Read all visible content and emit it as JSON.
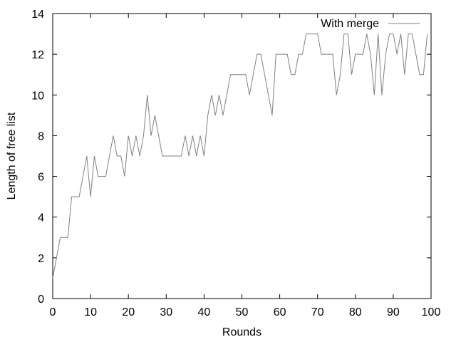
{
  "chart_data": {
    "type": "line",
    "xlabel": "Rounds",
    "ylabel": "Length of free list",
    "xlim": [
      0,
      100
    ],
    "ylim": [
      0,
      14
    ],
    "xticks": [
      0,
      10,
      20,
      30,
      40,
      50,
      60,
      70,
      80,
      90,
      100
    ],
    "yticks": [
      0,
      2,
      4,
      6,
      8,
      10,
      12,
      14
    ],
    "grid": false,
    "legend_position": "top-right",
    "series": [
      {
        "name": "With merge",
        "color": "#808080",
        "x": [
          0,
          1,
          2,
          3,
          4,
          5,
          6,
          7,
          8,
          9,
          10,
          11,
          12,
          13,
          14,
          15,
          16,
          17,
          18,
          19,
          20,
          21,
          22,
          23,
          24,
          25,
          26,
          27,
          28,
          29,
          30,
          31,
          32,
          33,
          34,
          35,
          36,
          37,
          38,
          39,
          40,
          41,
          42,
          43,
          44,
          45,
          46,
          47,
          48,
          49,
          50,
          51,
          52,
          53,
          54,
          55,
          56,
          57,
          58,
          59,
          60,
          61,
          62,
          63,
          64,
          65,
          66,
          67,
          68,
          69,
          70,
          71,
          72,
          73,
          74,
          75,
          76,
          77,
          78,
          79,
          80,
          81,
          82,
          83,
          84,
          85,
          86,
          87,
          88,
          89,
          90,
          91,
          92,
          93,
          94,
          95,
          96,
          97,
          98,
          99
        ],
        "values": [
          1,
          2,
          3,
          3,
          3,
          5,
          5,
          5,
          6,
          7,
          5,
          7,
          6,
          6,
          6,
          7,
          8,
          7,
          7,
          6,
          8,
          7,
          8,
          7,
          8,
          10,
          8,
          9,
          8,
          7,
          7,
          7,
          7,
          7,
          7,
          8,
          7,
          8,
          7,
          8,
          7,
          9,
          10,
          9,
          10,
          9,
          10,
          11,
          11,
          11,
          11,
          11,
          10,
          11,
          12,
          12,
          11,
          10,
          9,
          12,
          12,
          12,
          12,
          11,
          11,
          12,
          12,
          13,
          13,
          13,
          13,
          12,
          12,
          12,
          12,
          10,
          11,
          13,
          13,
          11,
          12,
          12,
          12,
          13,
          12,
          10,
          13,
          10,
          12,
          13,
          13,
          12,
          13,
          11,
          13,
          13,
          12,
          11,
          11,
          13
        ]
      }
    ]
  }
}
